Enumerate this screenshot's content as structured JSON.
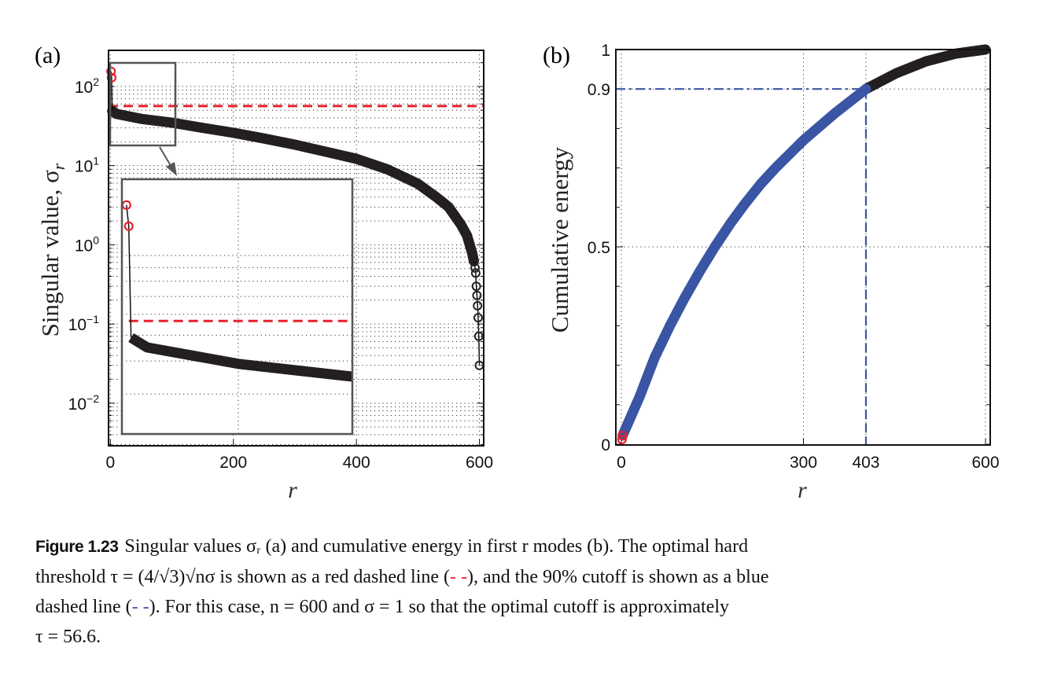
{
  "panel_labels": {
    "a": "(a)",
    "b": "(b)"
  },
  "chart_data": [
    {
      "id": "a",
      "type": "scatter",
      "yscale": "log",
      "xlabel": "r",
      "ylabel": "Singular value, σ",
      "ylabel_sub": "r",
      "xlim": [
        -3,
        607
      ],
      "ylim": [
        0.0029,
        286
      ],
      "xticks": [
        {
          "value": 0,
          "label": "0"
        },
        {
          "value": 200,
          "label": "200"
        },
        {
          "value": 400,
          "label": "400"
        },
        {
          "value": 600,
          "label": "600"
        }
      ],
      "yticks": [
        {
          "value": 100,
          "base": "10",
          "exp": "2"
        },
        {
          "value": 10,
          "base": "10",
          "exp": "1"
        },
        {
          "value": 1,
          "base": "10",
          "exp": "0"
        },
        {
          "value": 0.1,
          "base": "10",
          "exp": "−1"
        },
        {
          "value": 0.01,
          "base": "10",
          "exp": "−2"
        }
      ],
      "grid": true,
      "threshold": {
        "value": 56.6,
        "label": "optimal hard threshold τ",
        "color": "#e8202a",
        "style": "dashed"
      },
      "signal_points": [
        [
          1,
          155
        ],
        [
          2,
          129
        ]
      ],
      "noise_points": [
        [
          3,
          49
        ],
        [
          10,
          45
        ],
        [
          50,
          39
        ],
        [
          100,
          34.9
        ],
        [
          150,
          30
        ],
        [
          200,
          26
        ],
        [
          250,
          22
        ],
        [
          300,
          18.4
        ],
        [
          350,
          15
        ],
        [
          400,
          12.2
        ],
        [
          450,
          9
        ],
        [
          500,
          5.9
        ],
        [
          530,
          4
        ],
        [
          550,
          3.0
        ],
        [
          570,
          1.8
        ],
        [
          580,
          1.3
        ],
        [
          588,
          0.8
        ],
        [
          591,
          0.62
        ]
      ],
      "tail_points": [
        [
          593,
          0.51
        ],
        [
          594,
          0.44
        ],
        [
          595,
          0.3
        ],
        [
          596,
          0.23
        ],
        [
          597,
          0.17
        ],
        [
          598,
          0.12
        ],
        [
          599,
          0.07
        ],
        [
          600,
          0.03
        ]
      ],
      "inset": {
        "xlim": [
          -1,
          100
        ],
        "ylim": [
          21.2,
          194
        ],
        "grid_x": [
          50
        ],
        "grid_y": [
          30,
          40,
          50,
          60,
          70,
          80,
          90,
          100
        ]
      },
      "colors": {
        "signal": "#e8202a",
        "noise": "#231f20",
        "frame": "#555555"
      }
    },
    {
      "id": "b",
      "type": "line",
      "xlabel": "r",
      "ylabel": "Cumulative energy",
      "xlim": [
        -9,
        609
      ],
      "ylim": [
        0,
        1
      ],
      "xticks": [
        {
          "value": 0,
          "label": "0"
        },
        {
          "value": 300,
          "label": "300"
        },
        {
          "value": 403,
          "label": "403"
        },
        {
          "value": 600,
          "label": "600"
        }
      ],
      "yticks": [
        {
          "value": 0,
          "label": "0"
        },
        {
          "value": 0.5,
          "label": "0.5"
        },
        {
          "value": 0.9,
          "label": "0.9"
        },
        {
          "value": 1,
          "label": "1"
        }
      ],
      "grid": true,
      "cutoff": {
        "r": 403,
        "energy": 0.9,
        "color": "#3a55a4",
        "style": "dash-dot"
      },
      "signal_points": [
        [
          1,
          0.012
        ],
        [
          2,
          0.022
        ]
      ],
      "points": [
        [
          2,
          0.022
        ],
        [
          30,
          0.12
        ],
        [
          55,
          0.22
        ],
        [
          80,
          0.3
        ],
        [
          104,
          0.37
        ],
        [
          130,
          0.44
        ],
        [
          154,
          0.5
        ],
        [
          180,
          0.56
        ],
        [
          204,
          0.61
        ],
        [
          230,
          0.66
        ],
        [
          254,
          0.7
        ],
        [
          300,
          0.77
        ],
        [
          353,
          0.84
        ],
        [
          403,
          0.9
        ],
        [
          453,
          0.94
        ],
        [
          502,
          0.97
        ],
        [
          552,
          0.99
        ],
        [
          600,
          1.0
        ]
      ],
      "colors": {
        "before_cutoff": "#3a55a4",
        "after_cutoff": "#231f20",
        "signal": "#e8202a"
      }
    }
  ],
  "caption": {
    "figure_label": "Figure 1.23",
    "line1": "Singular values σᵣ (a) and cumulative energy in first r modes (b). The optimal hard",
    "line2a": "threshold τ = (4/√3)√nσ is shown as a red dashed line (",
    "line2_red": "- -",
    "line2b": "), and the 90% cutoff is shown as a blue",
    "line3a": "dashed line (",
    "line3_blue": "- -",
    "line3b": "). For this case, n = 600 and σ = 1 so that the optimal cutoff is approximately",
    "line4": "τ = 56.6."
  }
}
